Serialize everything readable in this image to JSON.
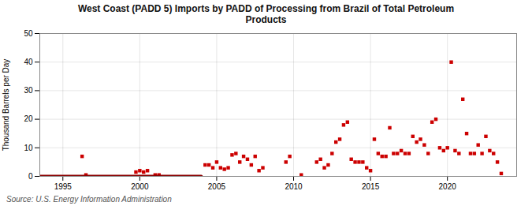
{
  "chart_data": {
    "type": "scatter",
    "title": "West Coast (PADD 5) Imports by PADD of Processing from Brazil of Total Petroleum\nProducts",
    "ylabel": "Thousand Barrels per Day",
    "source": "Source: U.S. Energy Information Administration",
    "xlim": [
      1993.5,
      2024.5
    ],
    "xticks": [
      1995,
      2000,
      2005,
      2010,
      2015,
      2020
    ],
    "ylim": [
      0,
      50
    ],
    "yticks": [
      0,
      10,
      20,
      30,
      40,
      50
    ],
    "grid": true,
    "series": [
      {
        "type": "scatter",
        "color": "#cc0000",
        "marker": "square",
        "x": [
          1996.25,
          1996.5,
          1999.75,
          2000.0,
          2000.25,
          2000.5,
          2001.0,
          2001.25,
          2004.25,
          2004.5,
          2004.75,
          2005.0,
          2005.25,
          2005.5,
          2005.75,
          2006.0,
          2006.25,
          2006.5,
          2006.75,
          2007.0,
          2007.25,
          2007.5,
          2007.75,
          2008.0,
          2009.5,
          2009.75,
          2010.5,
          2011.5,
          2011.75,
          2012.0,
          2012.25,
          2012.5,
          2012.75,
          2013.0,
          2013.25,
          2013.5,
          2013.75,
          2014.0,
          2014.25,
          2014.5,
          2014.75,
          2015.0,
          2015.25,
          2015.5,
          2015.75,
          2016.0,
          2016.25,
          2016.5,
          2016.75,
          2017.0,
          2017.25,
          2017.5,
          2017.75,
          2018.0,
          2018.25,
          2018.5,
          2018.75,
          2019.0,
          2019.25,
          2019.5,
          2019.75,
          2020.0,
          2020.25,
          2020.5,
          2020.75,
          2021.0,
          2021.25,
          2021.5,
          2021.75,
          2022.0,
          2022.25,
          2022.5,
          2022.75,
          2023.0,
          2023.25,
          2023.5
        ],
        "values": [
          7,
          0.5,
          1.5,
          2,
          1.5,
          2,
          0.5,
          0.5,
          4,
          4,
          3,
          5,
          3,
          2.5,
          3,
          7.5,
          8,
          5,
          7,
          6,
          4,
          7,
          2,
          3,
          5,
          7,
          0.5,
          5,
          6,
          3,
          4,
          8,
          12,
          13,
          18,
          19,
          6,
          5,
          5,
          5,
          3,
          2,
          13,
          8,
          7,
          7,
          17,
          8,
          8,
          9,
          8,
          8,
          14,
          12,
          13,
          11,
          8,
          19,
          20,
          10,
          9,
          10,
          40,
          9,
          8,
          27,
          15,
          8,
          8,
          11,
          8,
          14,
          9,
          8,
          5,
          1
        ]
      },
      {
        "type": "line",
        "color": "#8b0000",
        "x": [
          1993.5,
          2004.0
        ],
        "values": [
          0,
          0
        ]
      }
    ]
  }
}
